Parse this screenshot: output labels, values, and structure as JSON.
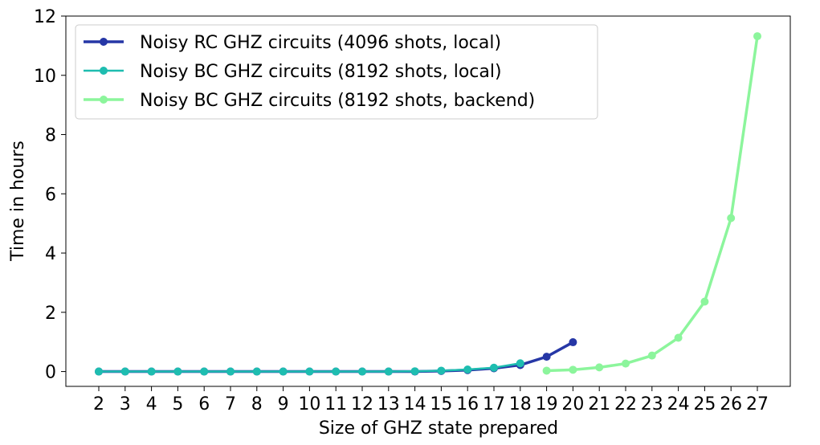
{
  "chart_data": {
    "type": "line",
    "xlabel": "Size of GHZ state prepared",
    "ylabel": "Time in hours",
    "ylim": [
      -0.5,
      12
    ],
    "yticks": [
      0,
      2,
      4,
      6,
      8,
      10,
      12
    ],
    "xticks": [
      2,
      3,
      4,
      5,
      6,
      7,
      8,
      9,
      10,
      11,
      12,
      13,
      14,
      15,
      16,
      17,
      18,
      19,
      20,
      21,
      22,
      23,
      24,
      25,
      26,
      27
    ],
    "xlim": [
      0.75,
      28.25
    ],
    "grid": false,
    "legend_position": "top-left",
    "series": [
      {
        "name": "Noisy RC GHZ circuits (4096 shots, local)",
        "color": "#2637a6",
        "line_width": "thick",
        "x": [
          2,
          3,
          4,
          5,
          6,
          7,
          8,
          9,
          10,
          11,
          12,
          13,
          14,
          15,
          16,
          17,
          18,
          19,
          20
        ],
        "values": [
          0.0,
          0.0,
          0.0,
          0.0,
          0.0,
          0.0,
          0.0,
          0.0,
          0.0,
          0.0,
          0.0,
          0.0,
          0.0,
          0.02,
          0.05,
          0.11,
          0.22,
          0.5,
          0.99
        ]
      },
      {
        "name": "Noisy BC GHZ circuits (8192 shots, local)",
        "color": "#1ebdb0",
        "line_width": "medium",
        "x": [
          2,
          3,
          4,
          5,
          6,
          7,
          8,
          9,
          10,
          11,
          12,
          13,
          14,
          15,
          16,
          17,
          18
        ],
        "values": [
          0.0,
          0.0,
          0.0,
          0.0,
          0.0,
          0.0,
          0.0,
          0.0,
          0.0,
          0.0,
          0.0,
          0.0,
          0.01,
          0.03,
          0.07,
          0.13,
          0.28
        ]
      },
      {
        "name": "Noisy BC GHZ circuits (8192 shots, backend)",
        "color": "#8cf59c",
        "line_width": "thick",
        "x": [
          19,
          20,
          21,
          22,
          23,
          24,
          25,
          26,
          27
        ],
        "values": [
          0.03,
          0.06,
          0.14,
          0.27,
          0.54,
          1.14,
          2.36,
          5.18,
          11.32
        ]
      }
    ]
  }
}
